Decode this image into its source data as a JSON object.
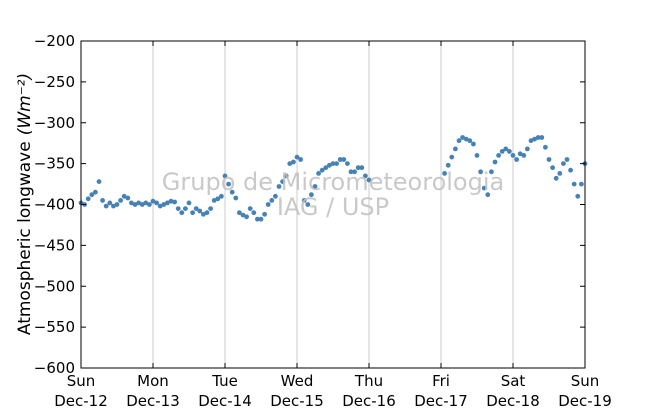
{
  "chart_data": {
    "type": "scatter",
    "title": "",
    "ylabel": "Atmospheric longwave",
    "ylabel_unit": "(Wm⁻²)",
    "xlabel": "",
    "ylim": [
      -600,
      -200
    ],
    "yticks": [
      -200,
      -250,
      -300,
      -350,
      -400,
      -450,
      -500,
      -550,
      -600
    ],
    "ytick_labels": [
      "−200",
      "−250",
      "−300",
      "−350",
      "−400",
      "−450",
      "−500",
      "−550",
      "−600"
    ],
    "xlim": [
      0,
      7
    ],
    "xticks": [
      0,
      1,
      2,
      3,
      4,
      5,
      6,
      7
    ],
    "xtick_labels": [
      [
        "Sun",
        "Dec-12"
      ],
      [
        "Mon",
        "Dec-13"
      ],
      [
        "Tue",
        "Dec-14"
      ],
      [
        "Wed",
        "Dec-15"
      ],
      [
        "Thu",
        "Dec-16"
      ],
      [
        "Fri",
        "Dec-17"
      ],
      [
        "Sat",
        "Dec-18"
      ],
      [
        "Sun",
        "Dec-19"
      ]
    ],
    "grid": "vertical",
    "marker_color": "#4682b4",
    "watermark": [
      "Grupo de Micrometeorologia",
      "IAG / USP"
    ],
    "series": [
      {
        "name": "",
        "x_unit": "days since Sun Dec-12",
        "x": [
          0.0,
          0.05,
          0.1,
          0.15,
          0.2,
          0.25,
          0.3,
          0.35,
          0.4,
          0.45,
          0.5,
          0.55,
          0.6,
          0.65,
          0.7,
          0.75,
          0.8,
          0.85,
          0.9,
          0.95,
          1.0,
          1.05,
          1.1,
          1.15,
          1.2,
          1.25,
          1.3,
          1.35,
          1.4,
          1.45,
          1.5,
          1.55,
          1.6,
          1.65,
          1.7,
          1.75,
          1.8,
          1.85,
          1.9,
          1.95,
          2.0,
          2.05,
          2.1,
          2.15,
          2.2,
          2.25,
          2.3,
          2.35,
          2.4,
          2.45,
          2.5,
          2.55,
          2.6,
          2.65,
          2.7,
          2.75,
          2.8,
          2.85,
          2.9,
          2.95,
          3.0,
          3.05,
          3.1,
          3.15,
          3.2,
          3.25,
          3.3,
          3.35,
          3.4,
          3.45,
          3.5,
          3.55,
          3.6,
          3.65,
          3.7,
          3.75,
          3.8,
          3.85,
          3.9,
          3.95,
          4.0,
          5.05,
          5.1,
          5.15,
          5.2,
          5.25,
          5.3,
          5.35,
          5.4,
          5.45,
          5.5,
          5.55,
          5.6,
          5.65,
          5.7,
          5.75,
          5.8,
          5.85,
          5.9,
          5.95,
          6.0,
          6.05,
          6.1,
          6.15,
          6.2,
          6.25,
          6.3,
          6.35,
          6.4,
          6.45,
          6.5,
          6.55,
          6.6,
          6.65,
          6.7,
          6.75,
          6.8,
          6.85,
          6.9,
          6.95,
          7.0
        ],
        "y": [
          -398,
          -400,
          -393,
          -388,
          -385,
          -372,
          -395,
          -402,
          -398,
          -402,
          -400,
          -395,
          -390,
          -392,
          -398,
          -400,
          -398,
          -400,
          -398,
          -400,
          -396,
          -398,
          -402,
          -400,
          -398,
          -396,
          -397,
          -405,
          -410,
          -405,
          -398,
          -410,
          -405,
          -408,
          -412,
          -410,
          -405,
          -395,
          -393,
          -390,
          -365,
          -375,
          -385,
          -392,
          -410,
          -413,
          -415,
          -405,
          -410,
          -418,
          -418,
          -412,
          -400,
          -395,
          -390,
          -378,
          -372,
          -365,
          -350,
          -348,
          -342,
          -345,
          -395,
          -400,
          -388,
          -378,
          -362,
          -358,
          -355,
          -352,
          -350,
          -350,
          -345,
          -345,
          -350,
          -360,
          -360,
          -355,
          -355,
          -365,
          -370,
          -362,
          -352,
          -342,
          -332,
          -322,
          -318,
          -320,
          -322,
          -326,
          -340,
          -360,
          -380,
          -388,
          -360,
          -348,
          -340,
          -335,
          -332,
          -335,
          -340,
          -345,
          -338,
          -340,
          -332,
          -322,
          -320,
          -318,
          -318,
          -330,
          -345,
          -355,
          -368,
          -362,
          -350,
          -345,
          -358,
          -375,
          -390,
          -375,
          -350
        ]
      }
    ]
  }
}
